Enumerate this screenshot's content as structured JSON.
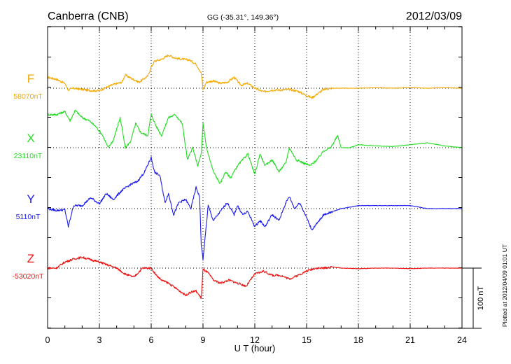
{
  "header": {
    "station": "Canberra (CNB)",
    "coords": "GG (-35.31°, 149.36°)",
    "date": "2012/03/09"
  },
  "footer": {
    "plotted": "Plotted at 2012/04/09 01:01 UT"
  },
  "chart_data": {
    "type": "line",
    "xlabel": "U T (hour)",
    "xlim": [
      0,
      24
    ],
    "xticks": [
      "0",
      "3",
      "6",
      "9",
      "12",
      "15",
      "18",
      "21",
      "24"
    ],
    "yunit": "nT",
    "scale_bar_label": "100 nT",
    "scale_bar_nT": 100,
    "grid": true,
    "series": [
      {
        "name": "F",
        "baseline_label": "58070nT",
        "color": "#f5a800",
        "x": [
          0,
          0.5,
          1,
          1.2,
          1.5,
          2,
          2.5,
          3,
          3.3,
          3.8,
          4.3,
          4.5,
          5,
          5.3,
          5.8,
          6,
          6.2,
          6.6,
          7,
          7.4,
          7.8,
          8.2,
          8.6,
          8.9,
          9,
          9.2,
          9.6,
          10,
          10.4,
          10.8,
          11.2,
          11.6,
          12,
          12.5,
          13,
          13.5,
          14,
          14.5,
          15,
          15.3,
          15.6,
          16,
          16.5,
          17,
          18,
          19,
          20,
          21,
          22,
          23,
          24
        ],
        "values": [
          18,
          15,
          8,
          -3,
          0,
          -2,
          -4,
          -4,
          0,
          6,
          10,
          22,
          14,
          10,
          20,
          35,
          45,
          48,
          55,
          50,
          48,
          47,
          40,
          25,
          -2,
          10,
          12,
          8,
          10,
          18,
          5,
          8,
          0,
          -6,
          -3,
          -3,
          -2,
          -5,
          -12,
          -16,
          -10,
          -2,
          0,
          0,
          0,
          1,
          0,
          1,
          0,
          1,
          0
        ]
      },
      {
        "name": "X",
        "baseline_label": "23110nT",
        "color": "#22dd22",
        "x": [
          0,
          0.5,
          1,
          1.3,
          1.6,
          2,
          2.4,
          2.8,
          3.2,
          3.5,
          3.8,
          4.2,
          4.5,
          4.8,
          5.1,
          5.4,
          5.8,
          6,
          6.3,
          6.6,
          7,
          7.4,
          7.8,
          8.1,
          8.4,
          8.7,
          8.9,
          9,
          9.2,
          9.6,
          10,
          10.3,
          10.6,
          11,
          11.3,
          11.6,
          12,
          12.3,
          12.6,
          13,
          13.4,
          13.8,
          14,
          14.4,
          14.8,
          15.2,
          15.6,
          16,
          16.4,
          16.8,
          17,
          17.5,
          18,
          19,
          20,
          21,
          22,
          23,
          24
        ],
        "values": [
          55,
          55,
          60,
          45,
          62,
          50,
          45,
          35,
          20,
          0,
          12,
          50,
          0,
          10,
          40,
          25,
          20,
          55,
          35,
          20,
          50,
          55,
          40,
          -20,
          0,
          -30,
          -10,
          40,
          0,
          -40,
          -60,
          -40,
          -50,
          -30,
          -20,
          -10,
          -45,
          -10,
          -30,
          -20,
          -40,
          -25,
          0,
          -20,
          -25,
          -30,
          -20,
          -5,
          0,
          20,
          0,
          0,
          5,
          3,
          2,
          5,
          8,
          3,
          0
        ]
      },
      {
        "name": "Y",
        "baseline_label": "5110nT",
        "color": "#1a1aee",
        "x": [
          0,
          0.5,
          1,
          1.2,
          1.5,
          2,
          2.5,
          3,
          3.4,
          3.8,
          4.3,
          4.8,
          5.2,
          5.6,
          6,
          6.2,
          6.5,
          6.8,
          7,
          7.3,
          7.6,
          8,
          8.3,
          8.6,
          8.8,
          8.9,
          9,
          9.3,
          9.6,
          10,
          10.4,
          10.8,
          11,
          11.3,
          11.6,
          12,
          12.3,
          12.6,
          13,
          13.4,
          13.8,
          14,
          14.3,
          14.6,
          15,
          15.3,
          15.6,
          16,
          16.5,
          17,
          18,
          19,
          20,
          21,
          22,
          23,
          24
        ],
        "values": [
          0,
          -3,
          -2,
          -30,
          5,
          5,
          18,
          8,
          25,
          15,
          30,
          40,
          45,
          60,
          85,
          60,
          55,
          10,
          25,
          -10,
          10,
          15,
          0,
          35,
          20,
          -60,
          -85,
          5,
          -20,
          -5,
          10,
          -10,
          5,
          -10,
          -5,
          -30,
          -20,
          -30,
          -10,
          -20,
          10,
          20,
          0,
          10,
          -15,
          -35,
          -25,
          -10,
          -5,
          0,
          5,
          5,
          5,
          5,
          0,
          0,
          0
        ]
      },
      {
        "name": "Z",
        "baseline_label": "-53020nT",
        "color": "#ee1111",
        "x": [
          0,
          0.5,
          1,
          1.5,
          2,
          2.5,
          3,
          3.5,
          4,
          4.5,
          5,
          5.5,
          6,
          6.3,
          6.6,
          7,
          7.5,
          8,
          8.3,
          8.6,
          8.9,
          9,
          9.3,
          9.6,
          10,
          10.5,
          11,
          11.5,
          12,
          12.5,
          13,
          13.5,
          14,
          14.5,
          15,
          15.5,
          16,
          16.5,
          17,
          18,
          19,
          20,
          21,
          22,
          23,
          24
        ],
        "values": [
          0,
          0,
          10,
          15,
          18,
          14,
          10,
          5,
          0,
          -10,
          -15,
          0,
          0,
          -12,
          -20,
          -25,
          -35,
          -45,
          -40,
          -38,
          -50,
          -2,
          -8,
          -20,
          -25,
          -20,
          -25,
          -30,
          -10,
          -5,
          -12,
          -12,
          -18,
          -12,
          -5,
          0,
          0,
          2,
          0,
          -1,
          0,
          0,
          -1,
          0,
          0,
          0
        ]
      }
    ]
  }
}
